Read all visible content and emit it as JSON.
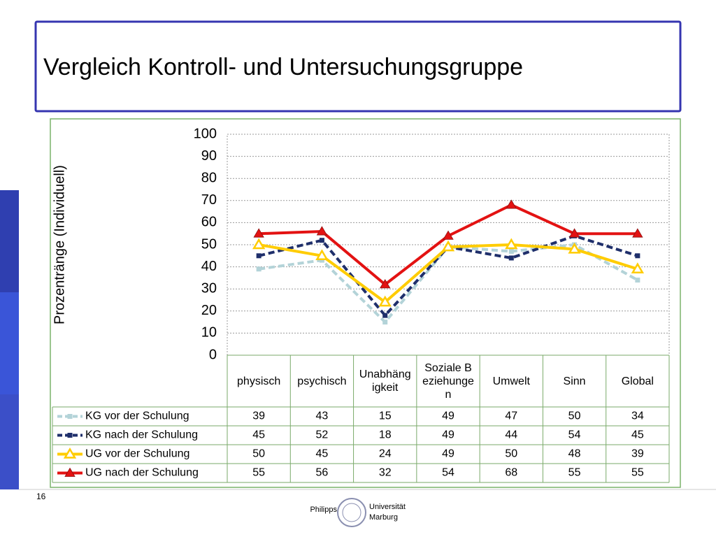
{
  "slide": {
    "title": "Vergleich Kontroll- und Untersuchungsgruppe",
    "page_number": "16",
    "logo": [
      "Philipps",
      "Universität",
      "Marburg"
    ]
  },
  "chart_data": {
    "type": "line",
    "y_label": "Prozentränge (Individuell)",
    "categories": [
      "physisch",
      "psychisch",
      "Unabhängigkeit",
      "Soziale Beziehungen",
      "Umwelt",
      "Sinn",
      "Global"
    ],
    "series": [
      {
        "name": "KG vor der Schulung",
        "color": "#b3d3d8",
        "dashed": true,
        "marker": "square",
        "values": [
          39,
          43,
          15,
          49,
          47,
          50,
          34
        ]
      },
      {
        "name": "KG nach der Schulung",
        "color": "#1f2f6b",
        "dashed": true,
        "marker": "square",
        "values": [
          45,
          52,
          18,
          49,
          44,
          54,
          45
        ]
      },
      {
        "name": "UG vor der Schulung",
        "color": "#ffcc00",
        "dashed": false,
        "marker": "triangle-open",
        "values": [
          50,
          45,
          24,
          49,
          50,
          48,
          39
        ]
      },
      {
        "name": "UG nach der Schulung",
        "color": "#e31212",
        "dashed": false,
        "marker": "triangle",
        "values": [
          55,
          56,
          32,
          54,
          68,
          55,
          55
        ]
      }
    ],
    "ylim": [
      0,
      100
    ],
    "yticks": [
      0,
      10,
      20,
      30,
      40,
      50,
      60,
      70,
      80,
      90,
      100
    ],
    "grid": true
  }
}
